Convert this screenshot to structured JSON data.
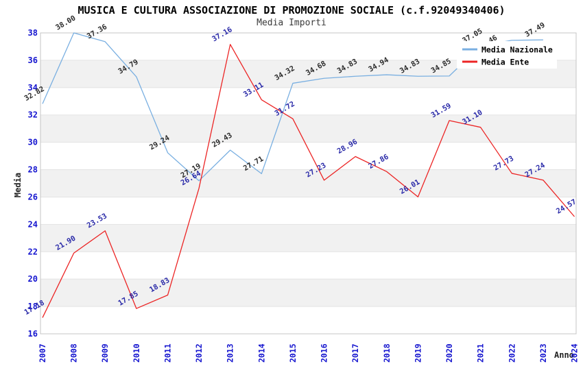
{
  "title": "MUSICA E CULTURA ASSOCIAZIONE DI PROMOZIONE SOCIALE (c.f.92049340406)",
  "subtitle": "Media Importi",
  "axis": {
    "x_title": "Anno",
    "y_title": "Media"
  },
  "legend": {
    "position": "top-right",
    "items": [
      {
        "label": "Media Nazionale",
        "color": "#79afe1"
      },
      {
        "label": "Media Ente",
        "color": "#ec2424"
      }
    ]
  },
  "chart_data": {
    "type": "line",
    "x": [
      "2007",
      "2008",
      "2009",
      "2010",
      "2011",
      "2012",
      "2013",
      "2014",
      "2015",
      "2016",
      "2017",
      "2018",
      "2019",
      "2020",
      "2021",
      "2022",
      "2023",
      "2024"
    ],
    "xlabel": "Anno",
    "ylabel": "Media",
    "ylim": [
      16,
      38
    ],
    "ytick_step": 2,
    "yticks": [
      "16",
      "18",
      "20",
      "22",
      "24",
      "26",
      "28",
      "30",
      "32",
      "34",
      "36",
      "38"
    ],
    "grid": "banded-horizontal",
    "legend_position": "top-right",
    "series": [
      {
        "name": "Media Nazionale",
        "color": "#79afe1",
        "label_color": "#2b2b2b",
        "values": [
          32.82,
          38.0,
          37.36,
          34.79,
          29.24,
          27.19,
          29.43,
          27.71,
          34.32,
          34.68,
          34.83,
          34.94,
          34.83,
          34.85,
          37.05,
          37.46,
          37.49,
          null
        ],
        "labels": [
          "32.82",
          "38.00",
          "37.36",
          "34.79",
          "29.24",
          "27.19",
          "29.43",
          "27.71",
          "34.32",
          "34.68",
          "34.83",
          "34.94",
          "34.83",
          "34.85",
          "37.05",
          "37.46",
          "37.49",
          null
        ],
        "label_offsets": {
          "15": [
            -48,
            14
          ]
        }
      },
      {
        "name": "Media Ente",
        "color": "#ec2424",
        "label_color": "#2929a8",
        "values": [
          17.18,
          21.9,
          23.53,
          17.85,
          18.83,
          26.64,
          37.16,
          33.11,
          31.72,
          27.23,
          28.96,
          27.86,
          26.01,
          31.59,
          31.1,
          27.73,
          27.24,
          24.57
        ],
        "labels": [
          "17.18",
          "21.90",
          "23.53",
          "17.85",
          "18.83",
          "26.64",
          "37.16",
          "33.11",
          "31.72",
          "27.23",
          "28.96",
          "27.86",
          "26.01",
          "31.59",
          "31.10",
          "27.73",
          "27.24",
          "24.57"
        ],
        "label_offsets": {}
      }
    ]
  },
  "colors": {
    "band": "#f1f1f1",
    "gridline": "#e3e3e3",
    "spine": "#c4c4c4",
    "tick_label": "#1515cf",
    "title": "#000000",
    "subtitle": "#3a3a3a",
    "legend_text": "#000000",
    "background": "#ffffff"
  }
}
